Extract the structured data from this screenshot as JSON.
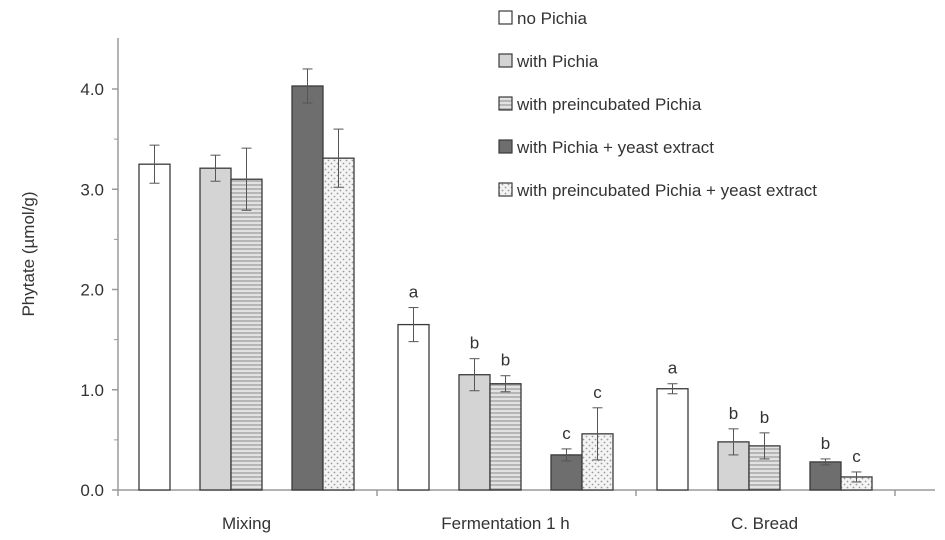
{
  "chart_data": {
    "type": "bar",
    "ylabel": "Phytate (µmol/g)",
    "ylim": [
      0,
      4.0
    ],
    "yticks": [
      "0.0",
      "1.0",
      "2.0",
      "3.0",
      "4.0"
    ],
    "ytick_values": [
      0,
      1,
      2,
      3,
      4
    ],
    "categories": [
      "Mixing",
      "Fermentation 1 h",
      "C. Bread"
    ],
    "legend_position": "top-right",
    "series": [
      {
        "name": "no Pichia",
        "pattern": "white",
        "values": [
          3.25,
          1.65,
          1.01
        ],
        "errors": [
          0.19,
          0.17,
          0.05
        ],
        "labels": [
          "",
          "a",
          "a"
        ]
      },
      {
        "name": "with Pichia",
        "pattern": "light-gray",
        "values": [
          3.21,
          1.15,
          0.48
        ],
        "errors": [
          0.13,
          0.16,
          0.13
        ],
        "labels": [
          "",
          "b",
          "b"
        ]
      },
      {
        "name": "with preincubated Pichia",
        "pattern": "horizontal-stripes",
        "values": [
          3.1,
          1.06,
          0.44
        ],
        "errors": [
          0.31,
          0.08,
          0.13
        ],
        "labels": [
          "",
          "b",
          "b"
        ]
      },
      {
        "name": "with Pichia + yeast extract",
        "pattern": "dark-gray",
        "values": [
          4.03,
          0.35,
          0.28
        ],
        "errors": [
          0.17,
          0.06,
          0.03
        ],
        "labels": [
          "",
          "c",
          "b"
        ]
      },
      {
        "name": "with preincubated Pichia + yeast extract",
        "pattern": "dots",
        "values": [
          3.31,
          0.56,
          0.13
        ],
        "errors": [
          0.29,
          0.26,
          0.05
        ],
        "labels": [
          "",
          "c",
          "c"
        ]
      }
    ],
    "colors": {
      "white": "#ffffff",
      "light_gray": "#d4d4d4",
      "stripe_bg": "#e2e2e2",
      "stripe_line": "#8a8a8a",
      "dark_gray": "#6e6e6e",
      "dots_bg": "#f4f4f4",
      "dots_fg": "#9a9a9a",
      "outline": "#3a3a3a",
      "axis": "#9a9a9a",
      "text": "#333333"
    }
  }
}
